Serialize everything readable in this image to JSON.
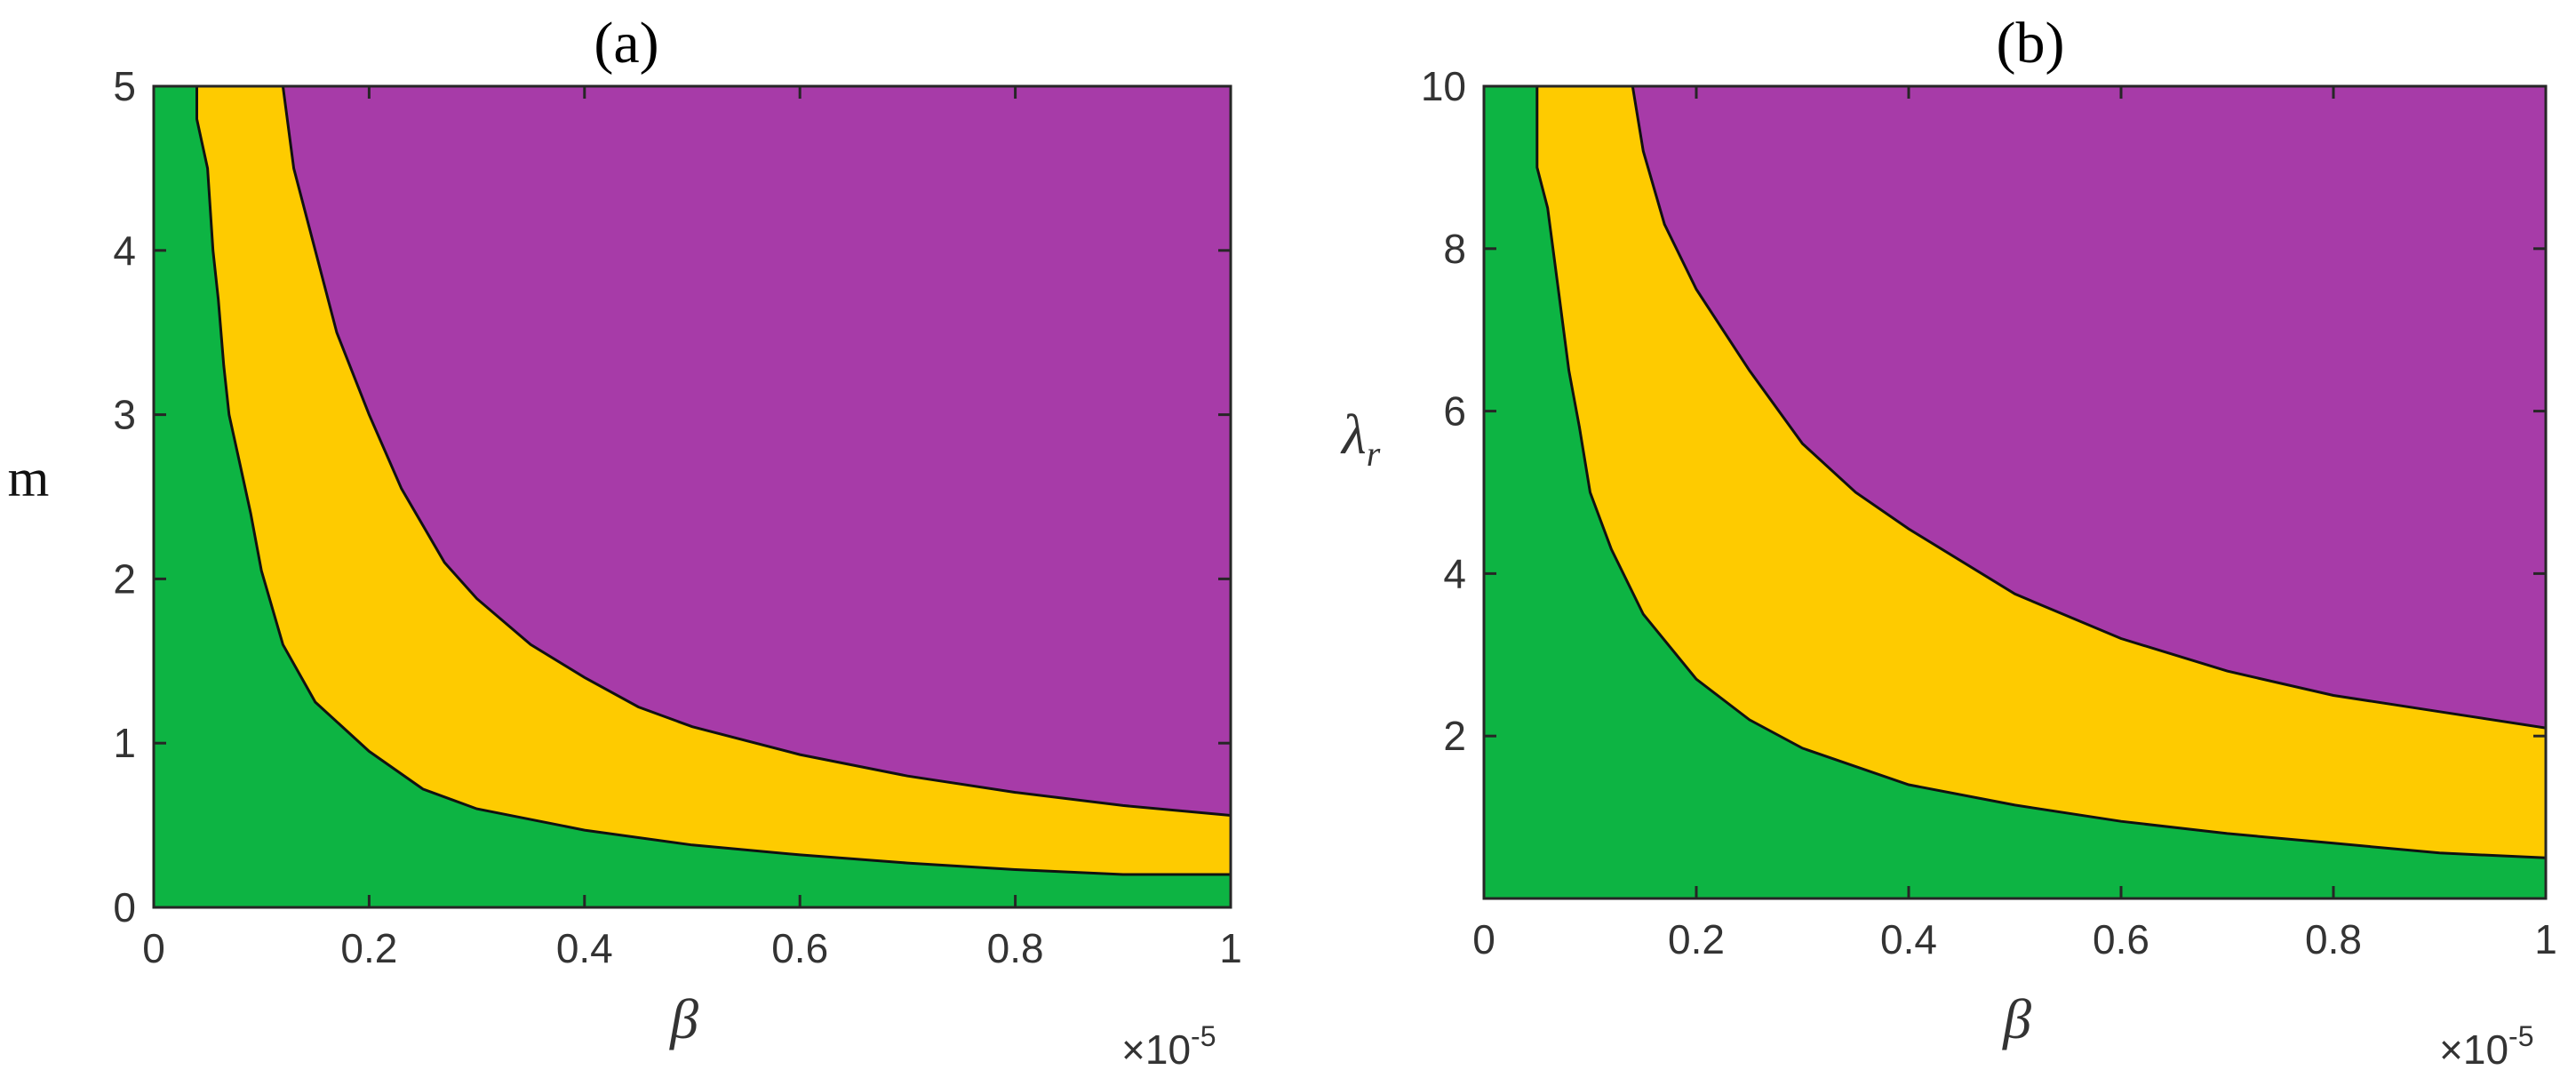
{
  "colors": {
    "green": "#0DB443",
    "yellow": "#FECB00",
    "purple": "#A73BA8"
  },
  "chart_data": [
    {
      "type": "region_map",
      "title": "(a)",
      "xlabel": "β",
      "ylabel": "m",
      "x_exponent_label": "×10",
      "x_exponent": "-5",
      "xlim": [
        0,
        1
      ],
      "ylim": [
        0,
        5
      ],
      "xticks": [
        0,
        0.2,
        0.4,
        0.6,
        0.8,
        1
      ],
      "xtick_labels": [
        "0",
        "0.2",
        "0.4",
        "0.6",
        "0.8",
        "1"
      ],
      "yticks": [
        0,
        1,
        2,
        3,
        4,
        5
      ],
      "ytick_labels": [
        "0",
        "1",
        "2",
        "3",
        "4",
        "5"
      ],
      "boundary_green_yellow": [
        [
          0.04,
          5
        ],
        [
          0.04,
          4.8
        ],
        [
          0.05,
          4.5
        ],
        [
          0.055,
          4.0
        ],
        [
          0.06,
          3.7
        ],
        [
          0.065,
          3.3
        ],
        [
          0.07,
          3.0
        ],
        [
          0.08,
          2.7
        ],
        [
          0.09,
          2.4
        ],
        [
          0.1,
          2.05
        ],
        [
          0.12,
          1.6
        ],
        [
          0.15,
          1.25
        ],
        [
          0.2,
          0.95
        ],
        [
          0.25,
          0.72
        ],
        [
          0.3,
          0.6
        ],
        [
          0.4,
          0.47
        ],
        [
          0.5,
          0.38
        ],
        [
          0.6,
          0.32
        ],
        [
          0.7,
          0.27
        ],
        [
          0.8,
          0.23
        ],
        [
          0.9,
          0.2
        ],
        [
          1.0,
          0.2
        ]
      ],
      "boundary_yellow_purple": [
        [
          0.12,
          5
        ],
        [
          0.13,
          4.5
        ],
        [
          0.15,
          4.0
        ],
        [
          0.17,
          3.5
        ],
        [
          0.2,
          3.0
        ],
        [
          0.23,
          2.55
        ],
        [
          0.27,
          2.1
        ],
        [
          0.3,
          1.88
        ],
        [
          0.35,
          1.6
        ],
        [
          0.4,
          1.4
        ],
        [
          0.45,
          1.22
        ],
        [
          0.5,
          1.1
        ],
        [
          0.6,
          0.93
        ],
        [
          0.7,
          0.8
        ],
        [
          0.8,
          0.7
        ],
        [
          0.9,
          0.62
        ],
        [
          1.0,
          0.56
        ]
      ]
    },
    {
      "type": "region_map",
      "title": "(b)",
      "xlabel": "β",
      "ylabel_base": "λ",
      "ylabel_sub": "r",
      "x_exponent_label": "×10",
      "x_exponent": "-5",
      "xlim": [
        0,
        1
      ],
      "ylim": [
        0,
        10
      ],
      "xticks": [
        0,
        0.2,
        0.4,
        0.6,
        0.8,
        1
      ],
      "xtick_labels": [
        "0",
        "0.2",
        "0.4",
        "0.6",
        "0.8",
        "1"
      ],
      "yticks": [
        2,
        4,
        6,
        8,
        10
      ],
      "ytick_labels": [
        "2",
        "4",
        "6",
        "8",
        "10"
      ],
      "boundary_green_yellow": [
        [
          0.05,
          10
        ],
        [
          0.05,
          9.0
        ],
        [
          0.06,
          8.5
        ],
        [
          0.07,
          7.5
        ],
        [
          0.08,
          6.5
        ],
        [
          0.09,
          5.8
        ],
        [
          0.1,
          5.0
        ],
        [
          0.12,
          4.3
        ],
        [
          0.15,
          3.5
        ],
        [
          0.2,
          2.7
        ],
        [
          0.25,
          2.2
        ],
        [
          0.3,
          1.85
        ],
        [
          0.4,
          1.4
        ],
        [
          0.5,
          1.15
        ],
        [
          0.6,
          0.95
        ],
        [
          0.7,
          0.8
        ],
        [
          0.8,
          0.68
        ],
        [
          0.9,
          0.56
        ],
        [
          1.0,
          0.5
        ]
      ],
      "boundary_yellow_purple": [
        [
          0.14,
          10
        ],
        [
          0.15,
          9.2
        ],
        [
          0.17,
          8.3
        ],
        [
          0.2,
          7.5
        ],
        [
          0.25,
          6.5
        ],
        [
          0.3,
          5.6
        ],
        [
          0.35,
          5.0
        ],
        [
          0.4,
          4.55
        ],
        [
          0.5,
          3.75
        ],
        [
          0.6,
          3.2
        ],
        [
          0.7,
          2.8
        ],
        [
          0.8,
          2.5
        ],
        [
          0.9,
          2.3
        ],
        [
          1.0,
          2.1
        ]
      ]
    }
  ]
}
